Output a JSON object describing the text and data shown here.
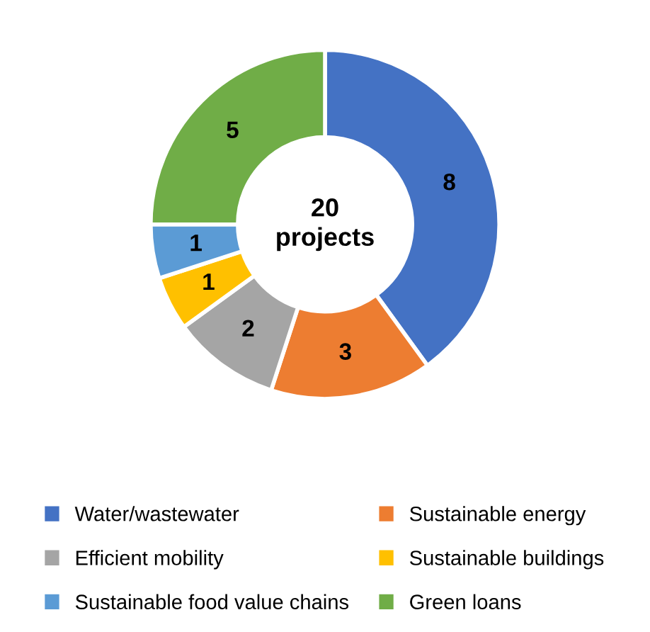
{
  "chart_data": {
    "type": "donut",
    "categories": [
      "Water/wastewater",
      "Sustainable energy",
      "Efficient mobility",
      "Sustainable buildings",
      "Sustainable food value chains",
      "Green loans"
    ],
    "values": [
      8,
      3,
      2,
      1,
      1,
      5
    ],
    "colors": [
      "#4472c4",
      "#ed7d31",
      "#a5a5a5",
      "#ffc000",
      "#5b9bd5",
      "#70ad47"
    ],
    "data_labels": true,
    "annotations": [
      "20\nprojects"
    ],
    "legend": "bottom"
  }
}
